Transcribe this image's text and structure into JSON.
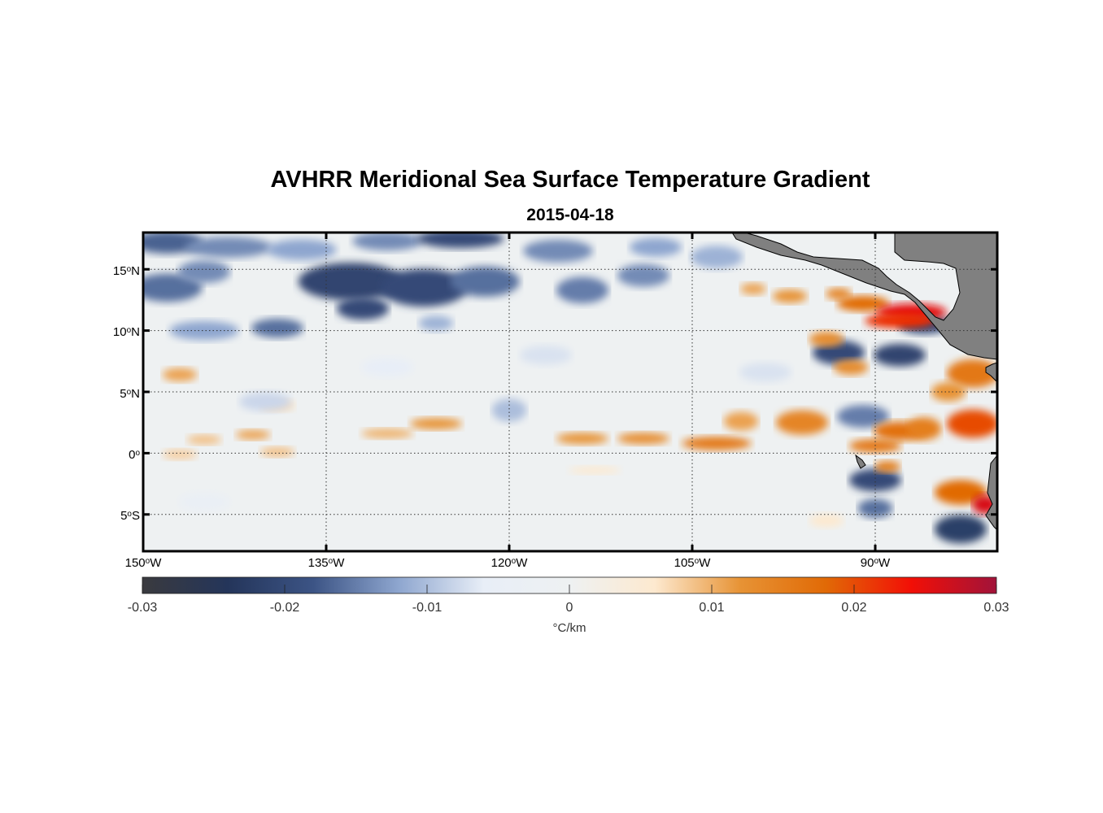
{
  "title": "AVHRR Meridional Sea Surface Temperature Gradient",
  "subtitle": "2015-04-18",
  "map": {
    "lon_range": [
      -150,
      -80
    ],
    "lat_range": [
      -8,
      18
    ],
    "grid": "dotted",
    "land_color": "#808080",
    "lat_ticks": [
      {
        "value": 15,
        "deg": "15",
        "sup": "o",
        "hem": "N"
      },
      {
        "value": 10,
        "deg": "10",
        "sup": "o",
        "hem": "N"
      },
      {
        "value": 5,
        "deg": "5",
        "sup": "o",
        "hem": "N"
      },
      {
        "value": 0,
        "deg": "0",
        "sup": "o",
        "hem": ""
      },
      {
        "value": -5,
        "deg": "5",
        "sup": "o",
        "hem": "S"
      }
    ],
    "lon_ticks": [
      {
        "value": -150,
        "deg": "150",
        "sup": "o",
        "hem": "W"
      },
      {
        "value": -135,
        "deg": "135",
        "sup": "o",
        "hem": "W"
      },
      {
        "value": -120,
        "deg": "120",
        "sup": "o",
        "hem": "W"
      },
      {
        "value": -105,
        "deg": "105",
        "sup": "o",
        "hem": "W"
      },
      {
        "value": -90,
        "deg": "90",
        "sup": "o",
        "hem": "W"
      }
    ]
  },
  "colorbar": {
    "min": -0.03,
    "max": 0.03,
    "ticks": [
      "-0.03",
      "-0.02",
      "-0.01",
      "0",
      "0.01",
      "0.02",
      "0.03"
    ],
    "unit": "°C/km",
    "colors": [
      "#3a3a3e",
      "#24355a",
      "#3c5485",
      "#8ea6cf",
      "#e8eef7",
      "#eef1f2",
      "#fde9cf",
      "#e79335",
      "#e16a06",
      "#f20f06",
      "#a1133a"
    ]
  }
}
